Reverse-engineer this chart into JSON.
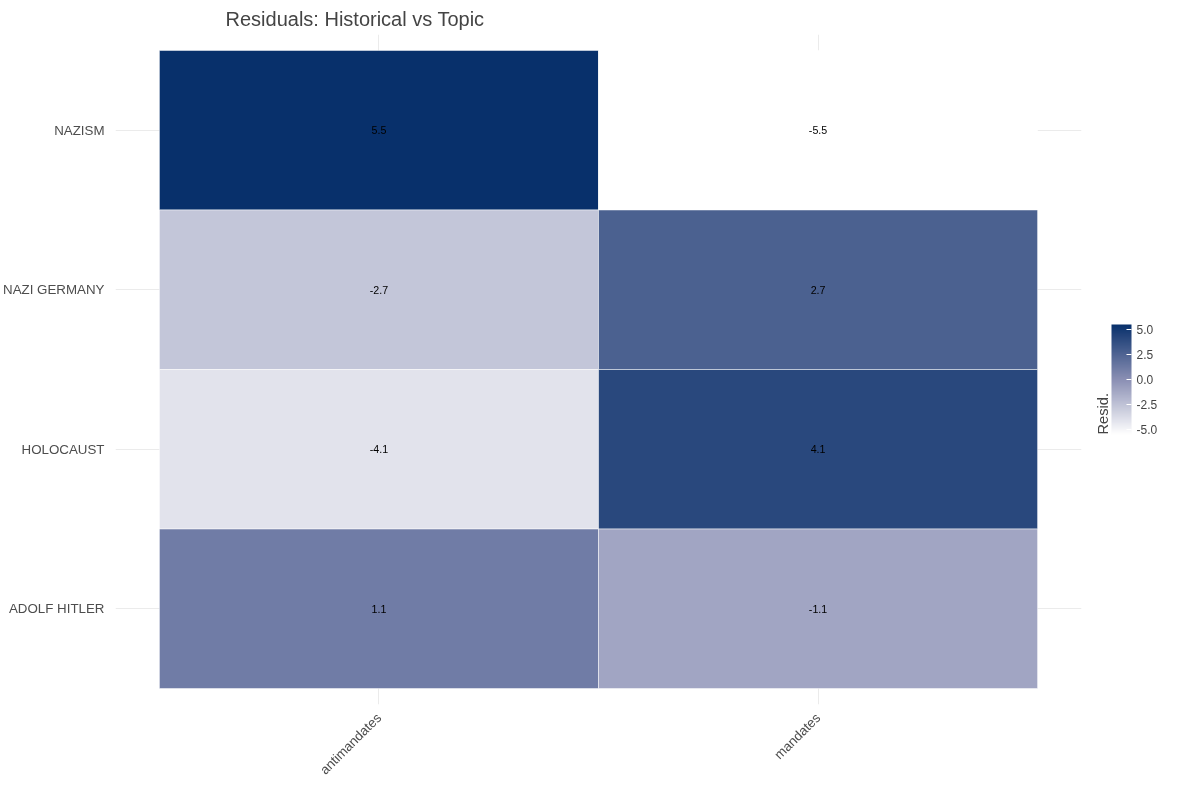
{
  "chart_data": {
    "type": "heatmap",
    "title": "Residuals: Historical vs Topic",
    "categories": [
      "antimandates",
      "mandates"
    ],
    "y_categories": [
      "NAZISM",
      "NAZI GERMANY",
      "HOLOCAUST",
      "ADOLF HITLER"
    ],
    "cells": [
      [
        5.5,
        -5.5
      ],
      [
        -2.7,
        2.7
      ],
      [
        -4.1,
        4.1
      ],
      [
        1.1,
        -1.1
      ]
    ],
    "clabel": "Resid.",
    "clim": [
      -5.5,
      5.5
    ],
    "cticks": [
      {
        "value": -5,
        "label": "-5.0"
      },
      -2.5,
      {
        "value": 0,
        "label": "0.0"
      },
      2.5,
      {
        "value": 5,
        "label": "5.0"
      }
    ],
    "data_labels": true,
    "grid": true
  }
}
